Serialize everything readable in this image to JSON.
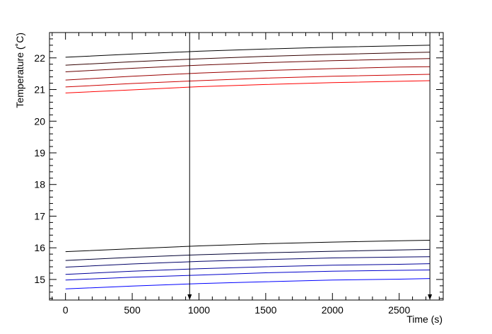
{
  "chart_data": {
    "type": "line",
    "xlabel": "Time (s)",
    "ylabel": "Temperature (˚C)",
    "xlim": [
      -120,
      2830
    ],
    "ylim": [
      14.35,
      22.8
    ],
    "x_ticks": [
      0,
      500,
      1000,
      1500,
      2000,
      2500
    ],
    "y_ticks": [
      15,
      16,
      17,
      18,
      19,
      20,
      21,
      22
    ],
    "grid": false,
    "legend": "none",
    "series": [
      {
        "values": [
          [
            0,
            22.02
          ],
          [
            500,
            22.12
          ],
          [
            1000,
            22.21
          ],
          [
            1500,
            22.28
          ],
          [
            2000,
            22.34
          ],
          [
            2500,
            22.38
          ],
          [
            2730,
            22.4
          ]
        ],
        "color": "#000000"
      },
      {
        "values": [
          [
            0,
            21.77
          ],
          [
            500,
            21.88
          ],
          [
            1000,
            21.97
          ],
          [
            1500,
            22.05
          ],
          [
            2000,
            22.11
          ],
          [
            2500,
            22.16
          ],
          [
            2730,
            22.18
          ]
        ],
        "color": "#330000"
      },
      {
        "values": [
          [
            0,
            21.56
          ],
          [
            500,
            21.67
          ],
          [
            1000,
            21.77
          ],
          [
            1500,
            21.85
          ],
          [
            2000,
            21.91
          ],
          [
            2500,
            21.96
          ],
          [
            2730,
            21.98
          ]
        ],
        "color": "#660000"
      },
      {
        "values": [
          [
            0,
            21.3
          ],
          [
            500,
            21.42
          ],
          [
            1000,
            21.52
          ],
          [
            1500,
            21.6
          ],
          [
            2000,
            21.66
          ],
          [
            2500,
            21.71
          ],
          [
            2730,
            21.72
          ]
        ],
        "color": "#990000"
      },
      {
        "values": [
          [
            0,
            21.08
          ],
          [
            500,
            21.19
          ],
          [
            1000,
            21.28
          ],
          [
            1500,
            21.36
          ],
          [
            2000,
            21.42
          ],
          [
            2500,
            21.46
          ],
          [
            2730,
            21.48
          ]
        ],
        "color": "#cc0000"
      },
      {
        "values": [
          [
            0,
            20.89
          ],
          [
            500,
            20.99
          ],
          [
            1000,
            21.09
          ],
          [
            1500,
            21.16
          ],
          [
            2000,
            21.22
          ],
          [
            2500,
            21.26
          ],
          [
            2730,
            21.28
          ]
        ],
        "color": "#ff0000"
      },
      {
        "values": [
          [
            0,
            15.88
          ],
          [
            500,
            15.97
          ],
          [
            1000,
            16.06
          ],
          [
            1500,
            16.13
          ],
          [
            2000,
            16.18
          ],
          [
            2500,
            16.22
          ],
          [
            2730,
            16.24
          ]
        ],
        "color": "#000000"
      },
      {
        "values": [
          [
            0,
            15.6
          ],
          [
            500,
            15.7
          ],
          [
            1000,
            15.78
          ],
          [
            1500,
            15.84
          ],
          [
            2000,
            15.89
          ],
          [
            2500,
            15.93
          ],
          [
            2730,
            15.95
          ]
        ],
        "color": "#000033"
      },
      {
        "values": [
          [
            0,
            15.39
          ],
          [
            500,
            15.49
          ],
          [
            1000,
            15.57
          ],
          [
            1500,
            15.63
          ],
          [
            2000,
            15.68
          ],
          [
            2500,
            15.71
          ],
          [
            2730,
            15.72
          ]
        ],
        "color": "#000066"
      },
      {
        "values": [
          [
            0,
            15.16
          ],
          [
            500,
            15.26
          ],
          [
            1000,
            15.34
          ],
          [
            1500,
            15.4
          ],
          [
            2000,
            15.45
          ],
          [
            2500,
            15.48
          ],
          [
            2730,
            15.5
          ]
        ],
        "color": "#000099"
      },
      {
        "values": [
          [
            0,
            14.98
          ],
          [
            500,
            15.07
          ],
          [
            1000,
            15.14
          ],
          [
            1500,
            15.21
          ],
          [
            2000,
            15.26
          ],
          [
            2500,
            15.29
          ],
          [
            2730,
            15.3
          ]
        ],
        "color": "#0000cc"
      },
      {
        "values": [
          [
            0,
            14.7
          ],
          [
            500,
            14.79
          ],
          [
            1000,
            14.87
          ],
          [
            1500,
            14.93
          ],
          [
            2000,
            14.98
          ],
          [
            2500,
            15.01
          ],
          [
            2730,
            15.03
          ]
        ],
        "color": "#0000ff"
      }
    ],
    "markers_x": [
      930,
      2730
    ]
  }
}
